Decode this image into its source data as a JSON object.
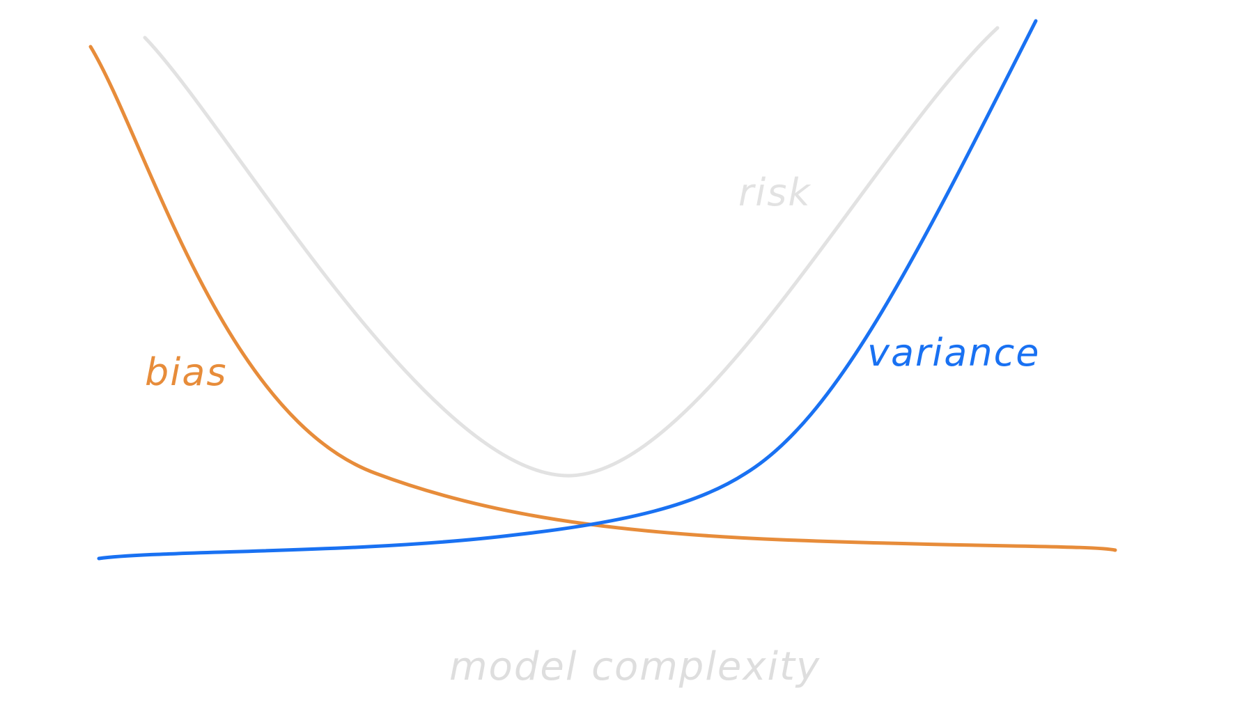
{
  "diagram": {
    "curves": [
      {
        "id": "risk",
        "label": "risk",
        "color": "#e2e2e2",
        "name": "risk-curve"
      },
      {
        "id": "bias",
        "label": "bias",
        "color": "#e78c3a",
        "name": "bias-curve"
      },
      {
        "id": "variance",
        "label": "variance",
        "color": "#1971f2",
        "name": "variance-curve"
      }
    ],
    "axis_label": "model complexity",
    "axis_label_color": "#dedede"
  }
}
